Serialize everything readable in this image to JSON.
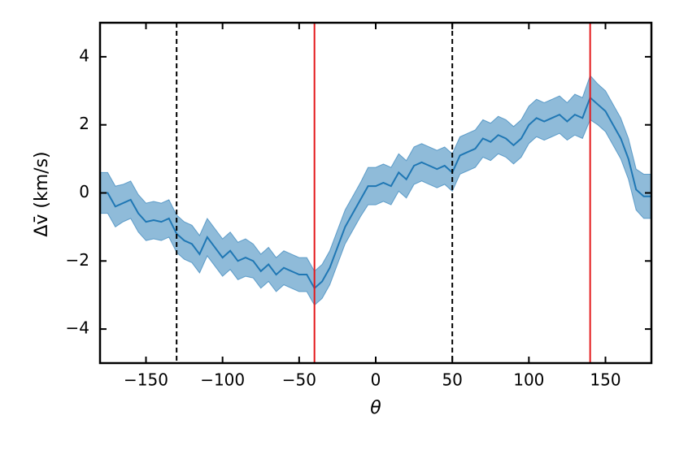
{
  "chart_data": {
    "type": "line",
    "xlabel": "θ",
    "ylabel": "Δv̄ (km/s)",
    "xlim": [
      -180,
      180
    ],
    "ylim": [
      -5,
      5
    ],
    "xticks": [
      {
        "value": -150,
        "label": "−150"
      },
      {
        "value": -100,
        "label": "−100"
      },
      {
        "value": -50,
        "label": "−50"
      },
      0,
      50,
      100,
      150
    ],
    "yticks": [
      {
        "value": -4,
        "label": "−4"
      },
      {
        "value": -2,
        "label": "−2"
      },
      0,
      2,
      4
    ],
    "vlines": [
      {
        "x": -130,
        "color": "#000000",
        "style": "dashed"
      },
      {
        "x": 50,
        "color": "#000000",
        "style": "dashed"
      },
      {
        "x": -40,
        "color": "#e41a1c",
        "style": "solid"
      },
      {
        "x": 140,
        "color": "#e41a1c",
        "style": "solid"
      }
    ],
    "x": [
      -180,
      -175,
      -170,
      -165,
      -160,
      -155,
      -150,
      -145,
      -140,
      -135,
      -130,
      -125,
      -120,
      -115,
      -110,
      -105,
      -100,
      -95,
      -90,
      -85,
      -80,
      -75,
      -70,
      -65,
      -60,
      -55,
      -50,
      -45,
      -40,
      -35,
      -30,
      -25,
      -20,
      -15,
      -10,
      -5,
      0,
      5,
      10,
      15,
      20,
      25,
      30,
      35,
      40,
      45,
      50,
      55,
      60,
      65,
      70,
      75,
      80,
      85,
      90,
      95,
      100,
      105,
      110,
      115,
      120,
      125,
      130,
      135,
      140,
      145,
      150,
      155,
      160,
      165,
      170,
      175,
      180
    ],
    "series": [
      {
        "color": "#1f77b4",
        "values": [
          0.0,
          0.0,
          -0.4,
          -0.3,
          -0.2,
          -0.6,
          -0.85,
          -0.8,
          -0.85,
          -0.75,
          -1.2,
          -1.4,
          -1.5,
          -1.8,
          -1.3,
          -1.6,
          -1.9,
          -1.7,
          -2.0,
          -1.9,
          -2.0,
          -2.3,
          -2.1,
          -2.4,
          -2.2,
          -2.3,
          -2.4,
          -2.4,
          -2.8,
          -2.6,
          -2.2,
          -1.6,
          -1.0,
          -0.6,
          -0.2,
          0.2,
          0.2,
          0.3,
          0.2,
          0.6,
          0.4,
          0.8,
          0.9,
          0.8,
          0.7,
          0.8,
          0.6,
          1.1,
          1.2,
          1.3,
          1.6,
          1.5,
          1.7,
          1.6,
          1.4,
          1.6,
          2.0,
          2.2,
          2.1,
          2.2,
          2.3,
          2.1,
          2.3,
          2.2,
          2.8,
          2.6,
          2.4,
          2.0,
          1.6,
          1.0,
          0.1,
          -0.1,
          -0.1
        ],
        "errors": [
          0.6,
          0.6,
          0.6,
          0.55,
          0.55,
          0.55,
          0.55,
          0.55,
          0.55,
          0.55,
          0.55,
          0.55,
          0.55,
          0.55,
          0.55,
          0.55,
          0.55,
          0.55,
          0.55,
          0.55,
          0.5,
          0.5,
          0.5,
          0.5,
          0.5,
          0.5,
          0.5,
          0.5,
          0.5,
          0.5,
          0.5,
          0.5,
          0.5,
          0.5,
          0.5,
          0.55,
          0.55,
          0.55,
          0.55,
          0.55,
          0.55,
          0.55,
          0.55,
          0.55,
          0.55,
          0.55,
          0.55,
          0.55,
          0.55,
          0.55,
          0.55,
          0.55,
          0.55,
          0.55,
          0.55,
          0.55,
          0.55,
          0.55,
          0.55,
          0.55,
          0.55,
          0.55,
          0.6,
          0.6,
          0.65,
          0.6,
          0.6,
          0.6,
          0.6,
          0.6,
          0.6,
          0.65,
          0.65
        ]
      }
    ]
  }
}
